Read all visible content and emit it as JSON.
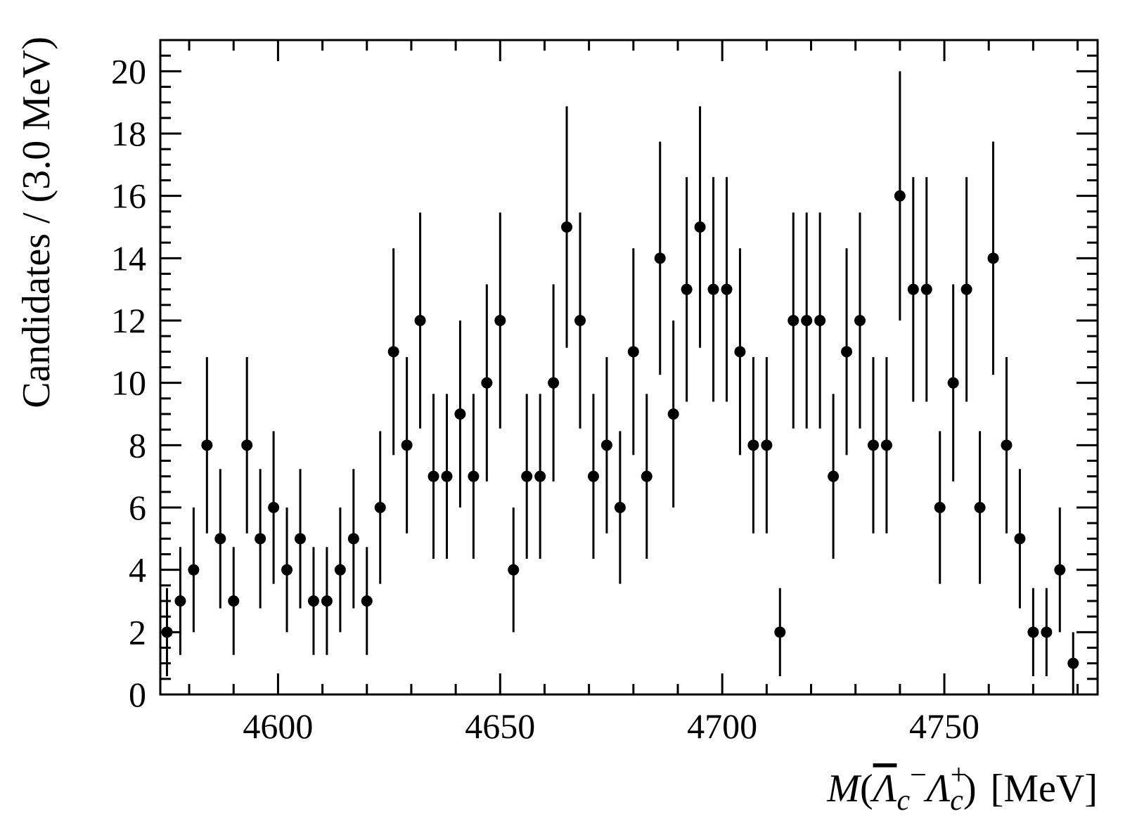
{
  "chart_data": {
    "type": "scatter",
    "style": "points-with-error-bars",
    "xlabel": {
      "italic_m": "M",
      "open": "(",
      "lambda_bar": "Λ",
      "sub_c": "c",
      "sup_minus": "−",
      "lambda": "Λ",
      "sup_plus": "+",
      "close": ")",
      "unit": "[MeV]"
    },
    "ylabel": "Candidates / (3.0 MeV)",
    "xlim": [
      4573.5,
      4784.5
    ],
    "ylim": [
      0,
      21
    ],
    "xticks": [
      4600,
      4650,
      4700,
      4750
    ],
    "yticks": [
      0,
      2,
      4,
      6,
      8,
      10,
      12,
      14,
      16,
      18,
      20
    ],
    "bin_width": 3.0,
    "x": [
      4575,
      4578,
      4581,
      4584,
      4587,
      4590,
      4593,
      4596,
      4599,
      4602,
      4605,
      4608,
      4611,
      4614,
      4617,
      4620,
      4623,
      4626,
      4629,
      4632,
      4635,
      4638,
      4641,
      4644,
      4647,
      4650,
      4653,
      4656,
      4659,
      4662,
      4665,
      4668,
      4671,
      4674,
      4677,
      4680,
      4683,
      4686,
      4689,
      4692,
      4695,
      4698,
      4701,
      4704,
      4707,
      4710,
      4713,
      4716,
      4719,
      4722,
      4725,
      4728,
      4731,
      4734,
      4737,
      4740,
      4743,
      4746,
      4749,
      4752,
      4755,
      4758,
      4761,
      4764,
      4767,
      4770,
      4773,
      4776,
      4779
    ],
    "y": [
      2,
      3,
      4,
      8,
      5,
      3,
      8,
      5,
      6,
      4,
      5,
      3,
      3,
      4,
      5,
      3,
      6,
      11,
      8,
      12,
      7,
      7,
      9,
      7,
      10,
      12,
      4,
      7,
      7,
      10,
      15,
      12,
      7,
      8,
      6,
      11,
      7,
      14,
      9,
      13,
      15,
      13,
      13,
      11,
      8,
      8,
      2,
      12,
      12,
      12,
      7,
      11,
      12,
      8,
      8,
      16,
      13,
      13,
      6,
      10,
      13,
      6,
      14,
      8,
      5,
      2,
      2,
      4,
      1
    ],
    "error": "sqrt(N)",
    "color": "#000000"
  }
}
